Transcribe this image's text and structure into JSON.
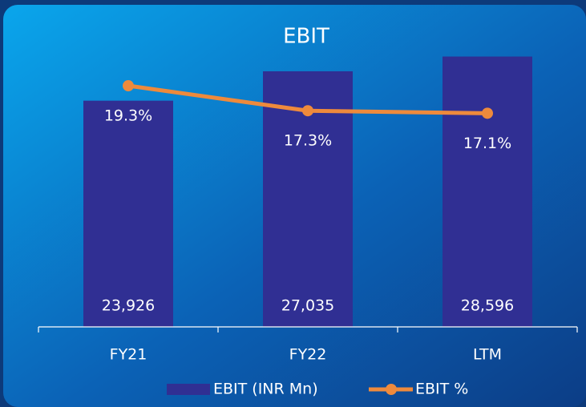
{
  "chart_data": {
    "type": "bar_line",
    "title": "EBIT",
    "categories": [
      "FY21",
      "FY22",
      "LTM"
    ],
    "series": [
      {
        "name": "EBIT (INR Mn)",
        "type": "bar",
        "color": "#302f93",
        "values": [
          23926,
          27035,
          28596
        ],
        "value_labels": [
          "23,926",
          "27,035",
          "28,596"
        ]
      },
      {
        "name": "EBIT %",
        "type": "line",
        "axis": "y2",
        "color": "#ee8a3c",
        "values": [
          19.3,
          17.3,
          17.1
        ],
        "value_labels": [
          "19.3%",
          "17.3%",
          "17.1%"
        ]
      }
    ],
    "ylim": [
      0,
      30000
    ],
    "y2lim": [
      0,
      22.7
    ]
  }
}
